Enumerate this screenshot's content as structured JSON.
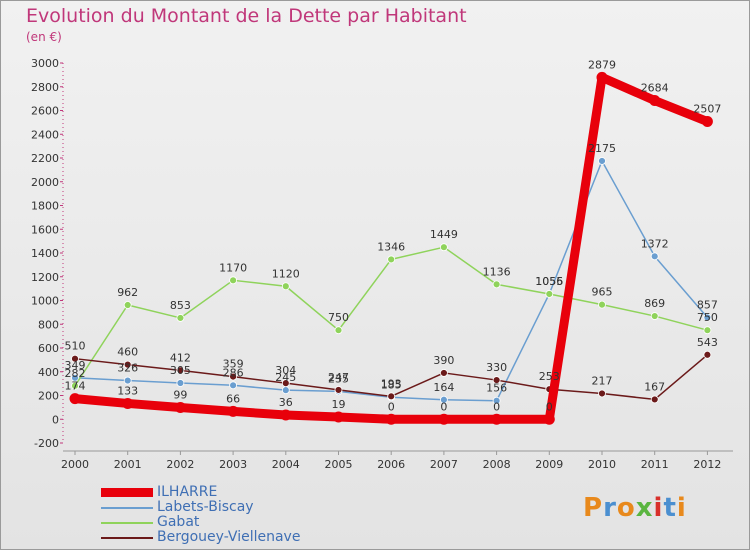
{
  "title": "Evolution du Montant de la Dette par Habitant",
  "subtitle": "(en €)",
  "logo": {
    "text": "Proxiti",
    "colors": [
      "#e8891c",
      "#4b8fd0",
      "#e8891c",
      "#5ab540",
      "#d8302b",
      "#4b8fd0",
      "#e8891c"
    ]
  },
  "chart_data": {
    "type": "line",
    "x": [
      "2000",
      "2001",
      "2002",
      "2003",
      "2004",
      "2005",
      "2006",
      "2007",
      "2008",
      "2009",
      "2010",
      "2011",
      "2012"
    ],
    "ylim": [
      -200,
      3000
    ],
    "yticks": [
      -200,
      0,
      200,
      400,
      600,
      800,
      1000,
      1200,
      1400,
      1600,
      1800,
      2000,
      2200,
      2400,
      2600,
      2800,
      3000
    ],
    "grid": false,
    "legend_position": "bottom-left",
    "series": [
      {
        "name": "ILHARRE",
        "color": "#e8000b",
        "width": 9,
        "values": [
          174,
          133,
          99,
          66,
          36,
          19,
          0,
          0,
          0,
          0,
          2879,
          2684,
          2507
        ],
        "labels": [
          "174",
          "133",
          "99",
          "66",
          "36",
          "19",
          "0",
          "0",
          "0",
          "0",
          "2879",
          "2684",
          "2507"
        ]
      },
      {
        "name": "Labets-Biscay",
        "color": "#6a9ed0",
        "width": 1.5,
        "values": [
          349,
          326,
          305,
          286,
          245,
          235,
          185,
          164,
          156,
          1056,
          2175,
          1372,
          857
        ],
        "labels": [
          "349",
          "326",
          "305",
          "286",
          "245",
          "235",
          "185",
          "164",
          "156",
          "1056",
          "2175",
          "1372",
          "857"
        ]
      },
      {
        "name": "Gabat",
        "color": "#8fd35b",
        "width": 1.5,
        "values": [
          282,
          962,
          853,
          1170,
          1120,
          750,
          1346,
          1449,
          1136,
          1055,
          965,
          869,
          750
        ],
        "labels": [
          "282",
          "962",
          "853",
          "1170",
          "1120",
          "750",
          "1346",
          "1449",
          "1136",
          "1055",
          "965",
          "869",
          "750"
        ]
      },
      {
        "name": "Bergouey-Viellenave",
        "color": "#6b1a1a",
        "width": 1.5,
        "values": [
          510,
          460,
          412,
          359,
          304,
          247,
          193,
          390,
          330,
          253,
          217,
          167,
          543
        ],
        "labels": [
          "510",
          "460",
          "412",
          "359",
          "304",
          "247",
          "193",
          "390",
          "330",
          "253",
          "217",
          "167",
          "543"
        ]
      }
    ]
  }
}
